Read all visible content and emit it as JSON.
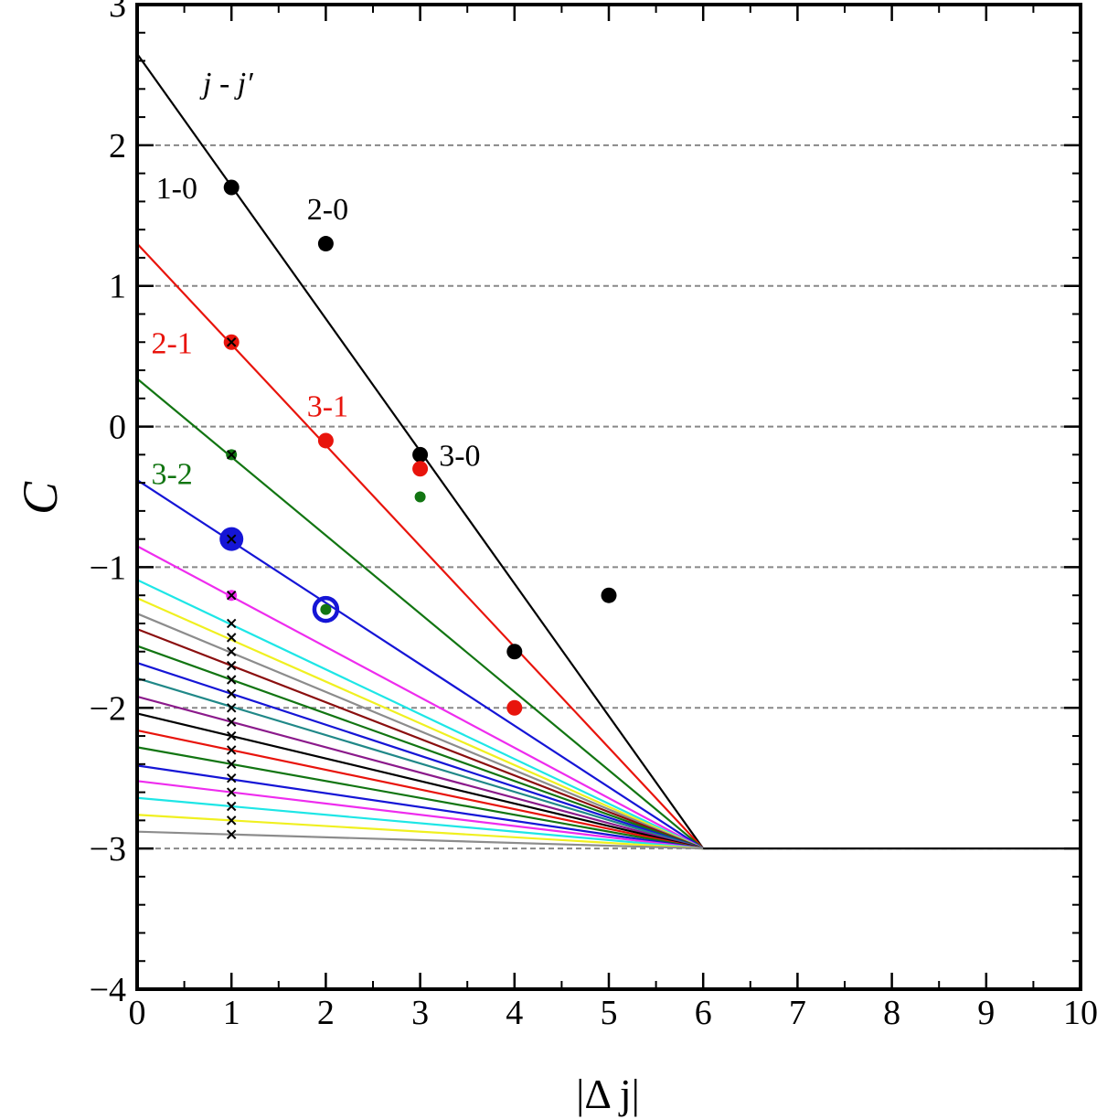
{
  "chart_data": {
    "type": "line",
    "title": "",
    "xlabel": "|Δ j|",
    "ylabel": "C",
    "xlim": [
      0,
      10
    ],
    "ylim": [
      -4,
      3
    ],
    "xticks": [
      0,
      1,
      2,
      3,
      4,
      5,
      6,
      7,
      8,
      9,
      10
    ],
    "yticks": [
      3,
      2,
      1,
      0,
      -1,
      -2,
      -3,
      -4
    ],
    "x_tick_labels": [
      "0",
      "1",
      "2",
      "3",
      "4",
      "5",
      "6",
      "7",
      "8",
      "9",
      "10"
    ],
    "y_tick_labels": [
      "3",
      "2",
      "1",
      "0",
      "−1",
      "−2",
      "−3",
      "−4"
    ],
    "grid": {
      "y_dashed_at": [
        2,
        1,
        0,
        -1,
        -2,
        -3
      ]
    },
    "legend_title": "j - j′",
    "baseline": {
      "from": [
        6,
        -3
      ],
      "to": [
        10,
        -3
      ],
      "color": "#000000"
    },
    "lines": [
      {
        "color": "#000000",
        "intercept": 2.65,
        "to": [
          6,
          -3
        ]
      },
      {
        "color": "#e8140c",
        "intercept": 1.3,
        "to": [
          6,
          -3
        ]
      },
      {
        "color": "#127512",
        "intercept": 0.34,
        "to": [
          6,
          -3
        ]
      },
      {
        "color": "#1515d6",
        "intercept": -0.38,
        "to": [
          6,
          -3
        ]
      },
      {
        "color": "#ee2cee",
        "intercept": -0.85,
        "to": [
          6,
          -3
        ]
      },
      {
        "color": "#1ee6e6",
        "intercept": -1.09,
        "to": [
          6,
          -3
        ]
      },
      {
        "color": "#f0f020",
        "intercept": -1.22,
        "to": [
          6,
          -3
        ]
      },
      {
        "color": "#8c8c8c",
        "intercept": -1.33,
        "to": [
          6,
          -3
        ]
      },
      {
        "color": "#8b0f0f",
        "intercept": -1.44,
        "to": [
          6,
          -3
        ]
      },
      {
        "color": "#127512",
        "intercept": -1.56,
        "to": [
          6,
          -3
        ]
      },
      {
        "color": "#1515d6",
        "intercept": -1.68,
        "to": [
          6,
          -3
        ]
      },
      {
        "color": "#208888",
        "intercept": -1.79,
        "to": [
          6,
          -3
        ]
      },
      {
        "color": "#8b1a8b",
        "intercept": -1.92,
        "to": [
          6,
          -3
        ]
      },
      {
        "color": "#000000",
        "intercept": -2.04,
        "to": [
          6,
          -3
        ]
      },
      {
        "color": "#e8140c",
        "intercept": -2.16,
        "to": [
          6,
          -3
        ]
      },
      {
        "color": "#127512",
        "intercept": -2.28,
        "to": [
          6,
          -3
        ]
      },
      {
        "color": "#1515d6",
        "intercept": -2.41,
        "to": [
          6,
          -3
        ]
      },
      {
        "color": "#ee2cee",
        "intercept": -2.52,
        "to": [
          6,
          -3
        ]
      },
      {
        "color": "#1ee6e6",
        "intercept": -2.64,
        "to": [
          6,
          -3
        ]
      },
      {
        "color": "#f0f020",
        "intercept": -2.76,
        "to": [
          6,
          -3
        ]
      },
      {
        "color": "#8c8c8c",
        "intercept": -2.88,
        "to": [
          6,
          -3
        ]
      }
    ],
    "points": [
      {
        "x": 1,
        "y": 1.7,
        "color": "#000000",
        "size": "medium"
      },
      {
        "x": 2,
        "y": 1.3,
        "color": "#000000",
        "size": "medium"
      },
      {
        "x": 3,
        "y": -0.2,
        "color": "#000000",
        "size": "medium"
      },
      {
        "x": 4,
        "y": -1.6,
        "color": "#000000",
        "size": "medium"
      },
      {
        "x": 5,
        "y": -1.2,
        "color": "#000000",
        "size": "medium"
      },
      {
        "x": 1,
        "y": 0.6,
        "color": "#e8140c",
        "size": "medium"
      },
      {
        "x": 2,
        "y": -0.1,
        "color": "#e8140c",
        "size": "medium"
      },
      {
        "x": 3,
        "y": -0.3,
        "color": "#e8140c",
        "size": "medium"
      },
      {
        "x": 4,
        "y": -2.0,
        "color": "#e8140c",
        "size": "medium"
      },
      {
        "x": 1,
        "y": -0.2,
        "color": "#127512",
        "size": "small"
      },
      {
        "x": 3,
        "y": -0.5,
        "color": "#127512",
        "size": "small"
      },
      {
        "x": 1,
        "y": -0.8,
        "color": "#1515d6",
        "size": "large"
      },
      {
        "x": 2,
        "y": -1.3,
        "color": "#1515d6",
        "size": "ring"
      },
      {
        "x": 2,
        "y": -1.3,
        "color": "#127512",
        "size": "small"
      },
      {
        "x": 1,
        "y": -1.2,
        "color": "#ee2cee",
        "size": "small"
      }
    ],
    "cross_markers": {
      "x": 1,
      "y": [
        0.6,
        -0.2,
        -0.8,
        -1.2,
        -1.4,
        -1.5,
        -1.6,
        -1.7,
        -1.8,
        -1.9,
        -2.0,
        -2.1,
        -2.2,
        -2.3,
        -2.4,
        -2.5,
        -2.6,
        -2.7,
        -2.8,
        -2.9
      ]
    },
    "annotations": [
      {
        "text": "1-0",
        "x": 0.2,
        "y": 1.7,
        "color": "#000000"
      },
      {
        "text": "2-0",
        "x": 1.8,
        "y": 1.55,
        "color": "#000000"
      },
      {
        "text": "2-1",
        "x": 0.15,
        "y": 0.6,
        "color": "#e8140c"
      },
      {
        "text": "3-1",
        "x": 1.8,
        "y": 0.15,
        "color": "#e8140c"
      },
      {
        "text": "3-0",
        "x": 3.2,
        "y": -0.2,
        "color": "#000000"
      },
      {
        "text": "3-2",
        "x": 0.15,
        "y": -0.33,
        "color": "#127512"
      }
    ]
  }
}
